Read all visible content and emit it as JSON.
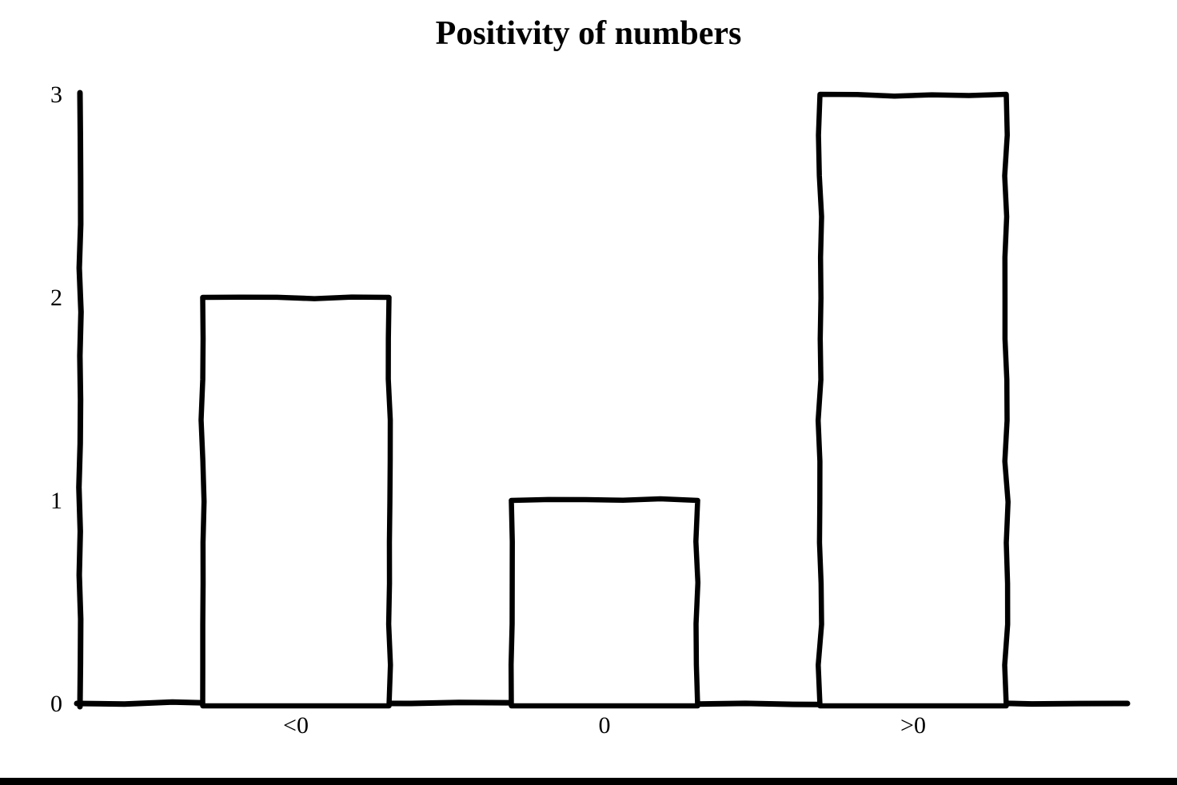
{
  "page": {
    "background": "#ffffff",
    "ink_color": "#000000",
    "bottom_border_color": "#000000"
  },
  "chart_data": {
    "type": "bar",
    "title": "Positivity of numbers",
    "categories": [
      "<0",
      "0",
      ">0"
    ],
    "values": [
      2,
      1,
      3
    ],
    "xlabel": "",
    "ylabel": "",
    "y_ticks": [
      0,
      1,
      2,
      3
    ],
    "ylim": [
      0,
      3
    ],
    "grid": false,
    "legend": "none",
    "style": "hand-drawn",
    "bar_fill": "#ffffff",
    "bar_outline": "#000000",
    "axis_color": "#000000",
    "label_color": "#000000"
  }
}
